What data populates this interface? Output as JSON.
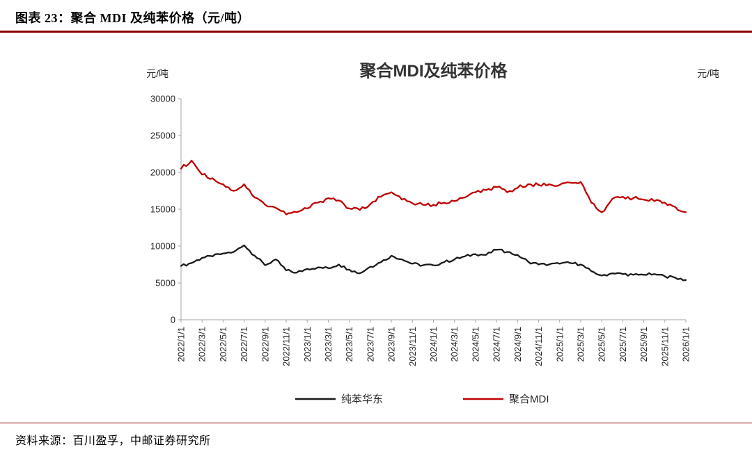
{
  "page": {
    "figure_header": "图表 23：聚合 MDI 及纯苯价格（元/吨）",
    "source_note": "资料来源：百川盈孚，中邮证券研究所",
    "rule_color": "#8B0000",
    "background_color": "#FFFFFF"
  },
  "chart_data": {
    "type": "line",
    "title": "聚合MDI及纯苯价格",
    "y_unit_left": "元/吨",
    "y_unit_right": "元/吨",
    "xlabel": "",
    "ylabel": "",
    "ylim": [
      0,
      30000
    ],
    "y_ticks": [
      0,
      5000,
      10000,
      15000,
      20000,
      25000,
      30000
    ],
    "grid": false,
    "legend_position": "bottom",
    "axis_color": "#A6A6A6",
    "label_color": "#262626",
    "x_interval": "monthly",
    "x_start": "2022/1/1",
    "x_end": "2026/1/1",
    "x_tick_labels": [
      "2022/1/1",
      "2022/3/1",
      "2022/5/1",
      "2022/7/1",
      "2022/9/1",
      "2022/11/1",
      "2023/1/1",
      "2023/3/1",
      "2023/5/1",
      "2023/7/1",
      "2023/9/1",
      "2023/11/1",
      "2024/1/1",
      "2024/3/1",
      "2024/5/1",
      "2024/7/1",
      "2024/9/1",
      "2024/11/1",
      "2025/1/1",
      "2025/3/1",
      "2025/5/1",
      "2025/7/1",
      "2025/9/1",
      "2025/11/1",
      "2026/1/1"
    ],
    "series": [
      {
        "name": "纯苯华东",
        "color": "#1A1A1A",
        "values": [
          7300,
          7700,
          8400,
          8600,
          9000,
          9200,
          10100,
          8700,
          7400,
          8200,
          6700,
          6400,
          6900,
          7100,
          7000,
          7500,
          6800,
          6300,
          7200,
          7800,
          8700,
          8200,
          7600,
          7400,
          7400,
          7800,
          8200,
          8600,
          8900,
          8800,
          9500,
          9200,
          8800,
          7900,
          7500,
          7500,
          7600,
          7700,
          7500,
          6600,
          6000,
          6300,
          6200,
          6100,
          6100,
          6200,
          5900,
          5700,
          5400
        ]
      },
      {
        "name": "聚合MDI",
        "color": "#C00000",
        "values": [
          20500,
          21600,
          19700,
          19200,
          18400,
          17500,
          18400,
          16600,
          15600,
          15200,
          14300,
          14600,
          15100,
          15900,
          16500,
          16200,
          15100,
          14900,
          15700,
          16700,
          17300,
          16300,
          15800,
          15600,
          15600,
          15900,
          16100,
          16600,
          17300,
          17600,
          18000,
          17300,
          17900,
          18400,
          18300,
          18400,
          18300,
          18600,
          18700,
          15900,
          14600,
          16400,
          16700,
          16500,
          16300,
          16100,
          15900,
          15300,
          14600
        ]
      }
    ]
  }
}
